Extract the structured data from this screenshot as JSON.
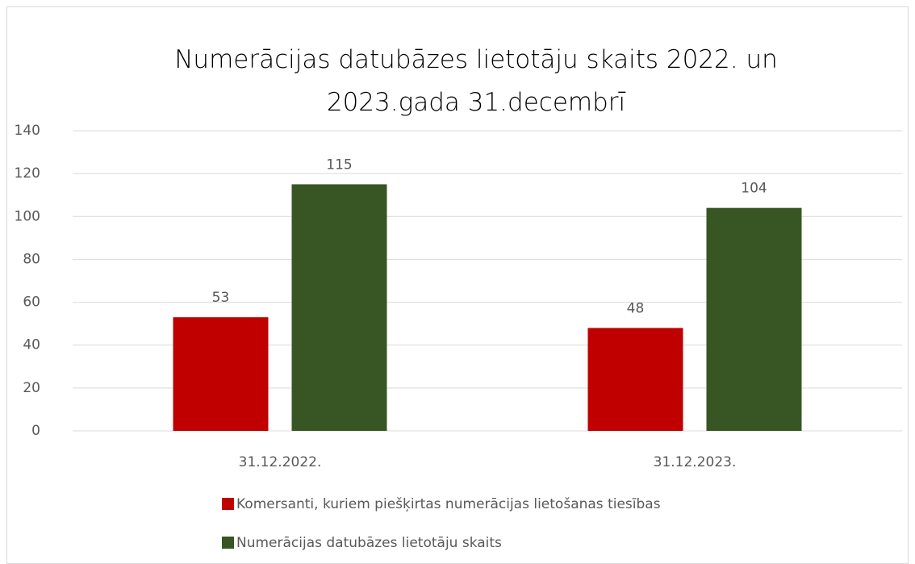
{
  "chart_data": {
    "type": "bar",
    "title": "Numerācijas datubāzes lietotāju skaits 2022. un 2023.gada 31.decembrī",
    "categories": [
      "31.12.2022.",
      "31.12.2023."
    ],
    "series": [
      {
        "name": "Komersanti, kuriem piešķirtas numerācijas lietošanas tiesības",
        "color": "#c00000",
        "values": [
          53,
          48
        ]
      },
      {
        "name": "Numerācijas datubāzes lietotāju skaits",
        "color": "#375623",
        "values": [
          115,
          104
        ]
      }
    ],
    "ylim": [
      0,
      140
    ],
    "yticks": [
      0,
      20,
      40,
      60,
      80,
      100,
      120,
      140
    ],
    "grid": true,
    "legend": "bottom"
  }
}
